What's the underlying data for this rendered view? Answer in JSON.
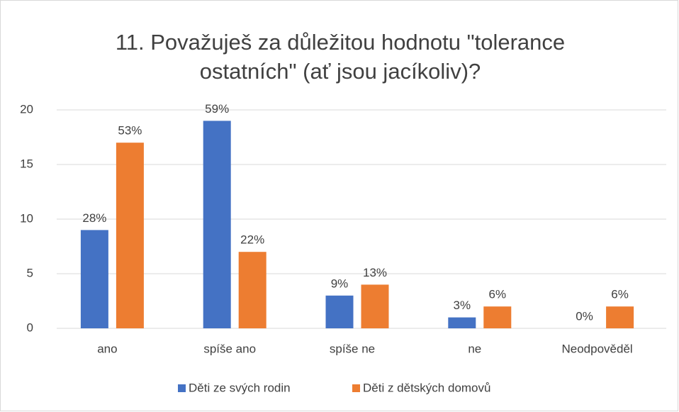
{
  "chart_data": {
    "type": "bar",
    "title": [
      "11. Považuješ za důležitou hodnotu \"tolerance",
      "ostatních\" (ať jsou jacíkoliv)?"
    ],
    "categories": [
      "ano",
      "spíše ano",
      "spíše ne",
      "ne",
      "Neodpověděl"
    ],
    "series": [
      {
        "name": "Děti ze svých rodin",
        "color": "#4472c4",
        "values": [
          9,
          19,
          3,
          1,
          0
        ],
        "value_labels": [
          "28%",
          "59%",
          "9%",
          "3%",
          "0%"
        ]
      },
      {
        "name": "Děti z dětských domovů",
        "color": "#ed7d31",
        "values": [
          17,
          7,
          4,
          2,
          2
        ],
        "value_labels": [
          "53%",
          "22%",
          "13%",
          "6%",
          "6%"
        ]
      }
    ],
    "ylim": [
      0,
      20
    ],
    "yticks": [
      0,
      5,
      10,
      15,
      20
    ],
    "grid": true,
    "legend": "bottom"
  }
}
